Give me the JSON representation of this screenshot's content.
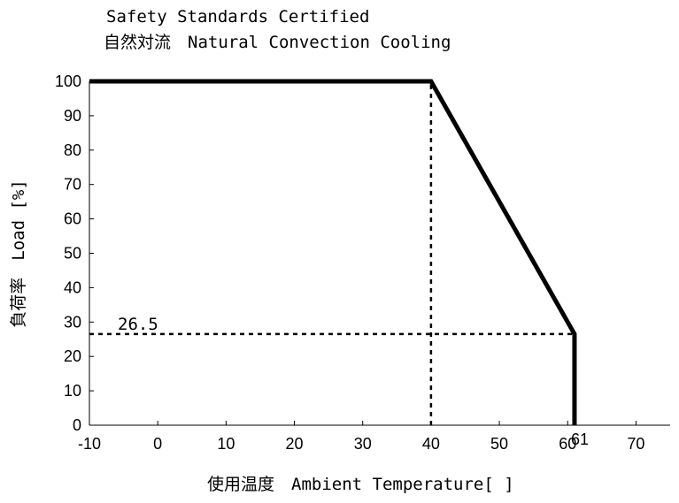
{
  "chart_data": {
    "type": "line",
    "title": "Safety Standards Certified",
    "subtitle": "自然対流　Natural Convection Cooling",
    "xlabel": "使用温度　Ambient Temperature[ ]",
    "ylabel": "負荷率　Load [%]",
    "xlim": [
      -10,
      75
    ],
    "ylim": [
      0,
      100
    ],
    "x_ticks": [
      -10,
      0,
      10,
      20,
      30,
      40,
      50,
      60,
      70
    ],
    "y_ticks": [
      0,
      10,
      20,
      30,
      40,
      50,
      60,
      70,
      80,
      90,
      100
    ],
    "grid": false,
    "series": [
      {
        "x": [
          -10,
          40,
          61,
          61
        ],
        "y": [
          100,
          100,
          26.5,
          0
        ]
      }
    ],
    "annotations": [
      {
        "label": "26.5",
        "kind": "horizontal-guide",
        "y": 26.5,
        "x_start": -10,
        "x_end": 61
      },
      {
        "label": "",
        "kind": "vertical-guide",
        "x": 40,
        "y_start": 0,
        "y_end": 100
      },
      {
        "label": "61",
        "kind": "x-marker",
        "x": 61
      }
    ],
    "colors": {
      "line": "#000000",
      "axis": "#000000"
    }
  }
}
